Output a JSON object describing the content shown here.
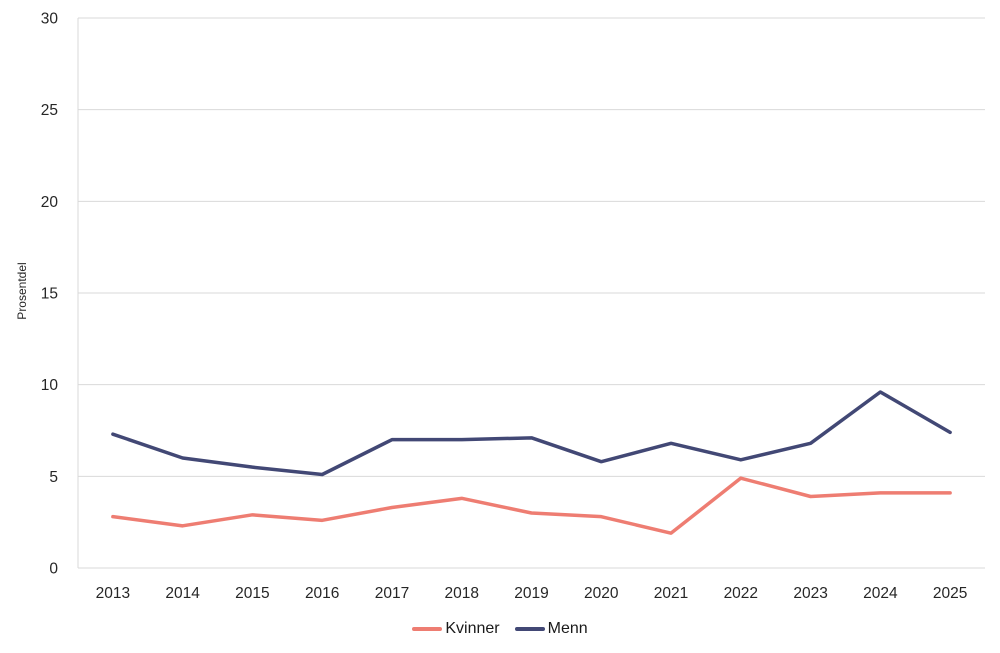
{
  "chart_data": {
    "type": "line",
    "title": "",
    "xlabel": "",
    "ylabel": "Prosentdel",
    "categories": [
      "2013",
      "2014",
      "2015",
      "2016",
      "2017",
      "2018",
      "2019",
      "2020",
      "2021",
      "2022",
      "2023",
      "2024",
      "2025"
    ],
    "series": [
      {
        "name": "Kvinner",
        "color": "#EE7D72",
        "values": [
          2.8,
          2.3,
          2.9,
          2.6,
          3.3,
          3.8,
          3.0,
          2.8,
          1.9,
          4.9,
          3.9,
          4.1,
          4.1
        ]
      },
      {
        "name": "Menn",
        "color": "#424875",
        "values": [
          7.3,
          6.0,
          5.5,
          5.1,
          7.0,
          7.0,
          7.1,
          5.8,
          6.8,
          5.9,
          6.8,
          9.6,
          7.4
        ]
      }
    ],
    "ylim": [
      0,
      30
    ],
    "yticks": [
      0,
      5,
      10,
      15,
      20,
      25,
      30
    ],
    "grid": true,
    "grid_color": "#D9D9D9",
    "axis_line_color": "#D9D9D9",
    "tick_text_color": "#262626",
    "axis_title_color": "#262626",
    "line_width": 3.5,
    "legend_position": "bottom"
  }
}
